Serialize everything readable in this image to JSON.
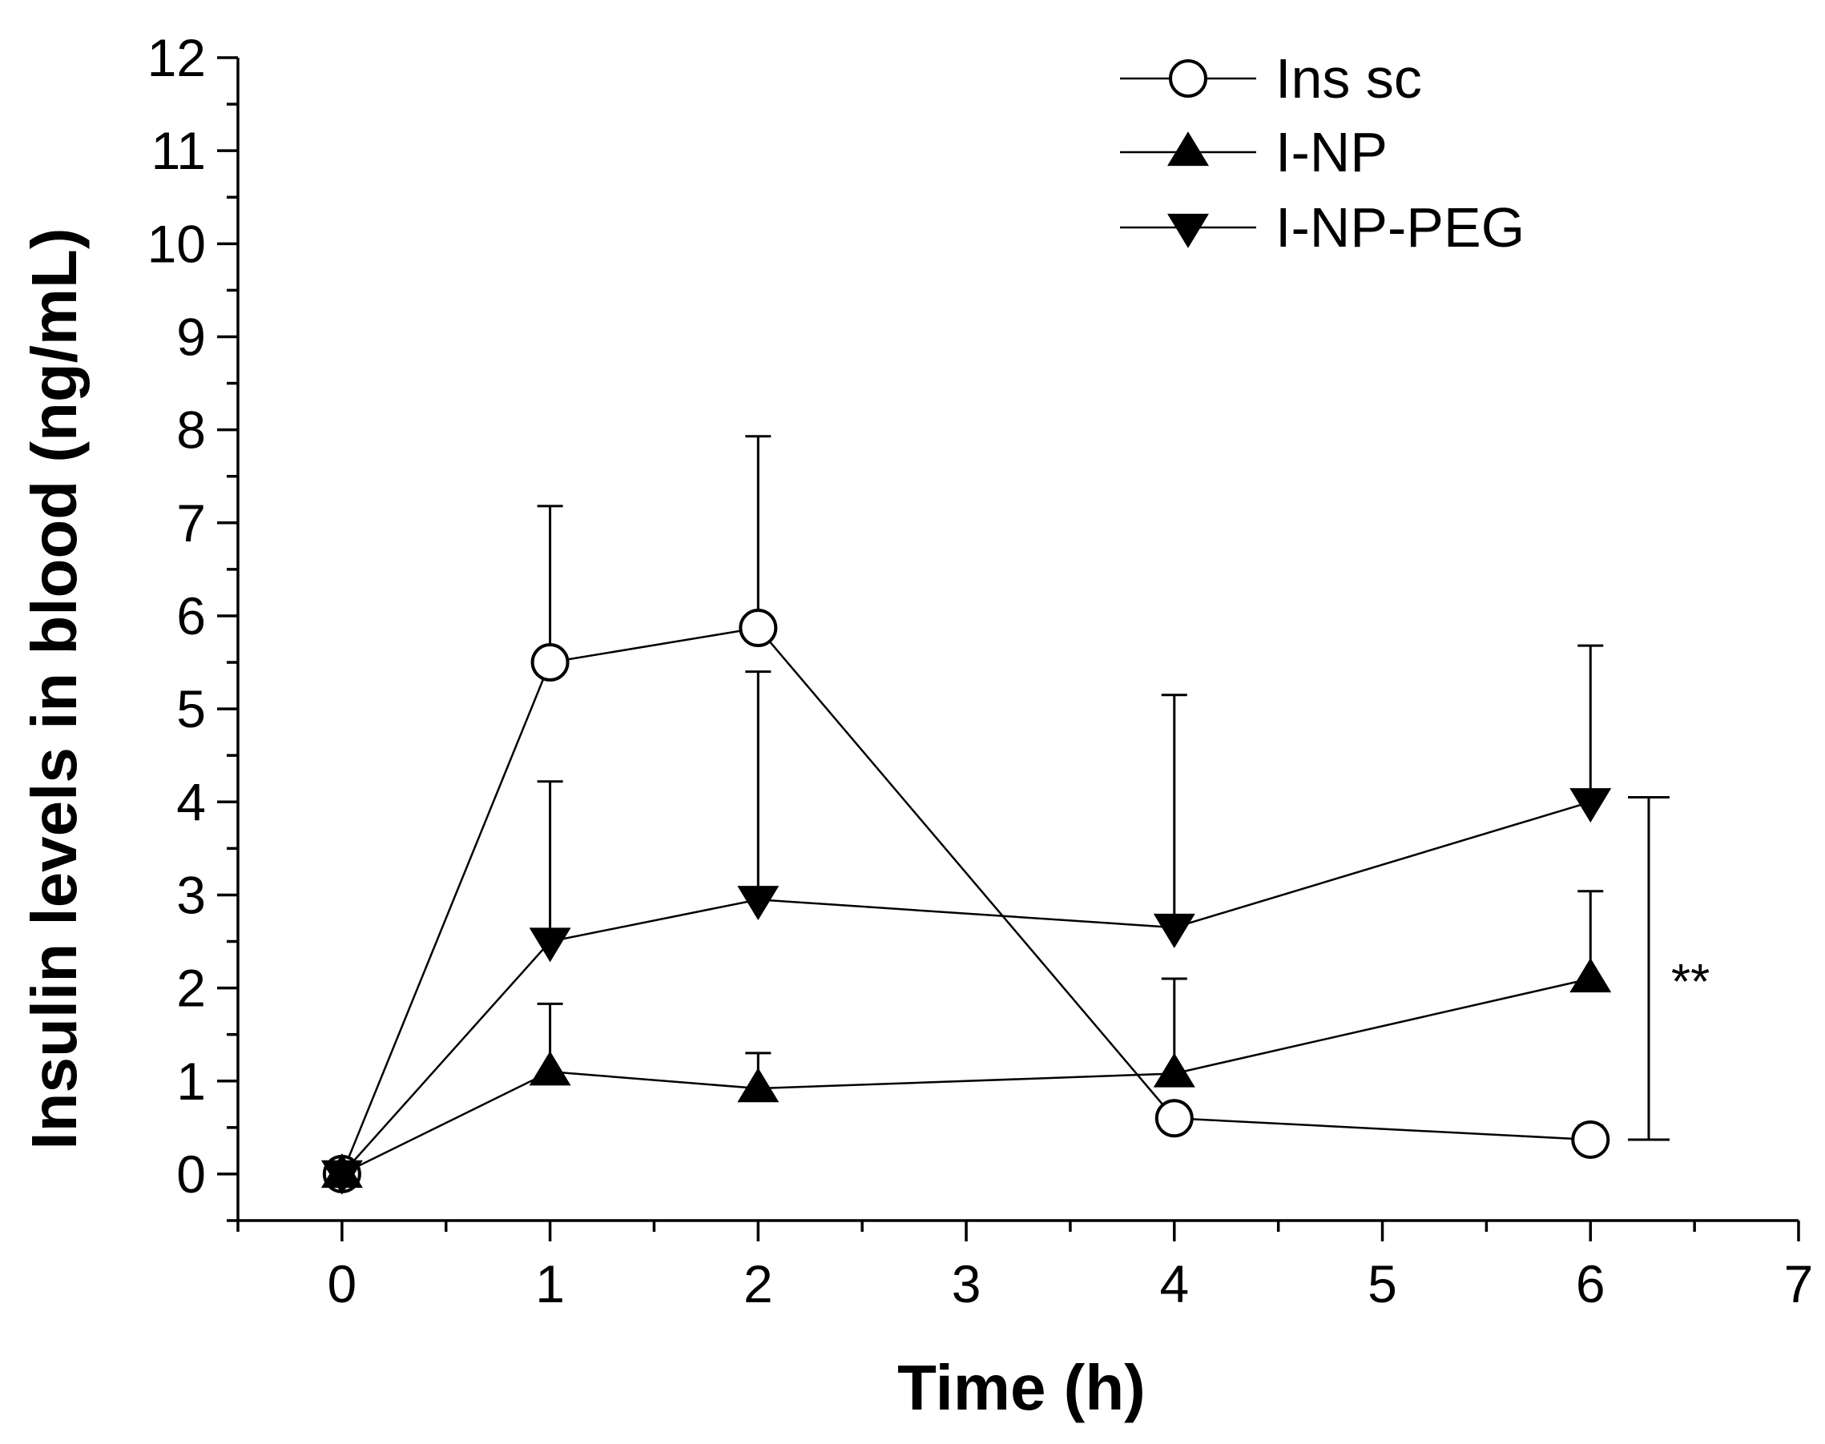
{
  "chart_data": {
    "type": "line",
    "xlabel": "Time (h)",
    "ylabel": "Insulin levels in blood (ng/mL)",
    "xlim": [
      -0.5,
      7
    ],
    "ylim": [
      -0.5,
      12
    ],
    "x_ticks": [
      0,
      1,
      2,
      3,
      4,
      5,
      6,
      7
    ],
    "y_ticks": [
      0,
      1,
      2,
      3,
      4,
      5,
      6,
      7,
      8,
      9,
      10,
      11,
      12
    ],
    "legend_position": "top-right",
    "series": [
      {
        "name": "Ins sc",
        "marker": "circle-open",
        "x": [
          0,
          1,
          2,
          4,
          6
        ],
        "y": [
          0.0,
          5.5,
          5.87,
          0.6,
          0.37
        ],
        "err": [
          0,
          1.68,
          2.06,
          0,
          0.15
        ]
      },
      {
        "name": "I-NP",
        "marker": "triangle-up-filled",
        "x": [
          0,
          1,
          2,
          4,
          6
        ],
        "y": [
          0.0,
          1.1,
          0.92,
          1.08,
          2.1
        ],
        "err": [
          0,
          0.73,
          0.38,
          1.02,
          0.94
        ]
      },
      {
        "name": "I-NP-PEG",
        "marker": "triangle-down-filled",
        "x": [
          0,
          1,
          2,
          4,
          6
        ],
        "y": [
          0.0,
          2.5,
          2.95,
          2.65,
          4.0
        ],
        "err": [
          0,
          1.72,
          2.45,
          2.5,
          1.68
        ]
      }
    ],
    "annotation": {
      "text": "**",
      "bracket_x": 6.28,
      "bracket_y_from": 0.37,
      "bracket_y_to": 4.05
    }
  }
}
